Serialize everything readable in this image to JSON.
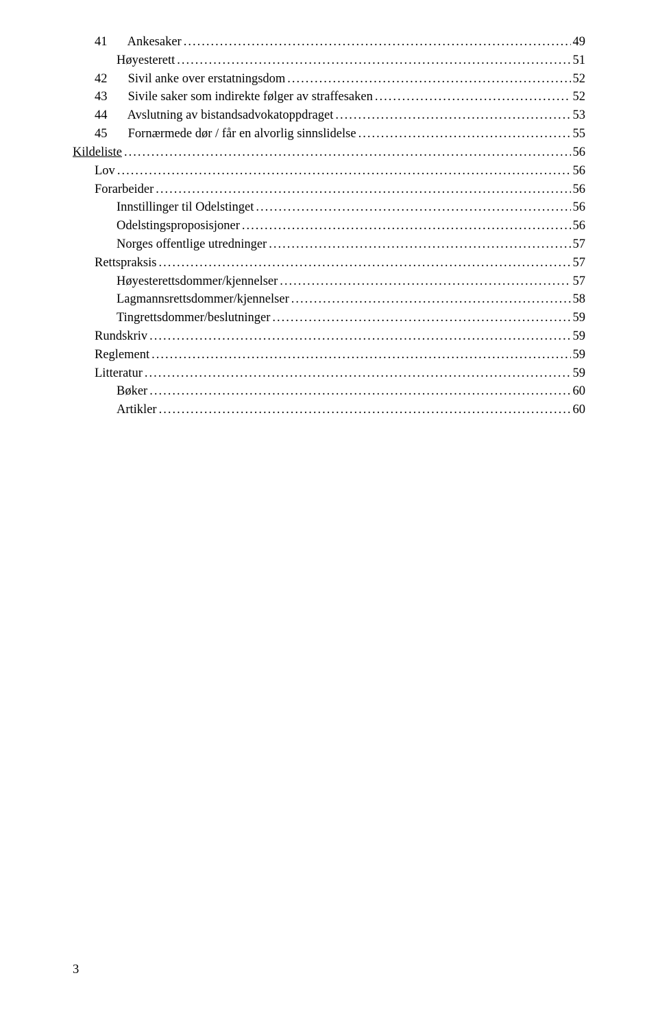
{
  "pageNumber": "3",
  "entries": [
    {
      "indent": 1,
      "num": "41",
      "label": "Ankesaker",
      "page": "49",
      "underline": false
    },
    {
      "indent": 2,
      "num": "",
      "label": "Høyesterett",
      "page": "51",
      "underline": false
    },
    {
      "indent": 1,
      "num": "42",
      "label": "Sivil anke over erstatningsdom",
      "page": "52",
      "underline": false
    },
    {
      "indent": 1,
      "num": "43",
      "label": "Sivile saker som indirekte følger av straffesaken",
      "page": "52",
      "underline": false
    },
    {
      "indent": 1,
      "num": "44",
      "label": "Avslutning av bistandsadvokatoppdraget",
      "page": "53",
      "underline": false
    },
    {
      "indent": 1,
      "num": "45",
      "label": "Fornærmede dør / får en alvorlig sinnslidelse",
      "page": "55",
      "underline": false
    },
    {
      "indent": 0,
      "num": "",
      "label": "Kildeliste",
      "page": "56",
      "underline": true
    },
    {
      "indent": 1,
      "num": "",
      "label": "Lov",
      "page": "56",
      "underline": false
    },
    {
      "indent": 1,
      "num": "",
      "label": "Forarbeider",
      "page": "56",
      "underline": false
    },
    {
      "indent": 2,
      "num": "",
      "label": "Innstillinger til Odelstinget",
      "page": "56",
      "underline": false
    },
    {
      "indent": 2,
      "num": "",
      "label": "Odelstingsproposisjoner",
      "page": "56",
      "underline": false
    },
    {
      "indent": 2,
      "num": "",
      "label": "Norges offentlige utredninger",
      "page": "57",
      "underline": false
    },
    {
      "indent": 1,
      "num": "",
      "label": "Rettspraksis",
      "page": "57",
      "underline": false
    },
    {
      "indent": 2,
      "num": "",
      "label": "Høyesterettsdommer/kjennelser",
      "page": "57",
      "underline": false
    },
    {
      "indent": 2,
      "num": "",
      "label": "Lagmannsrettsdommer/kjennelser",
      "page": "58",
      "underline": false
    },
    {
      "indent": 2,
      "num": "",
      "label": "Tingrettsdommer/beslutninger",
      "page": "59",
      "underline": false
    },
    {
      "indent": 1,
      "num": "",
      "label": "Rundskriv",
      "page": "59",
      "underline": false
    },
    {
      "indent": 1,
      "num": "",
      "label": "Reglement",
      "page": "59",
      "underline": false
    },
    {
      "indent": 1,
      "num": "",
      "label": "Litteratur",
      "page": "59",
      "underline": false
    },
    {
      "indent": 2,
      "num": "",
      "label": "Bøker",
      "page": "60",
      "underline": false
    },
    {
      "indent": 2,
      "num": "",
      "label": "Artikler",
      "page": "60",
      "underline": false
    }
  ]
}
